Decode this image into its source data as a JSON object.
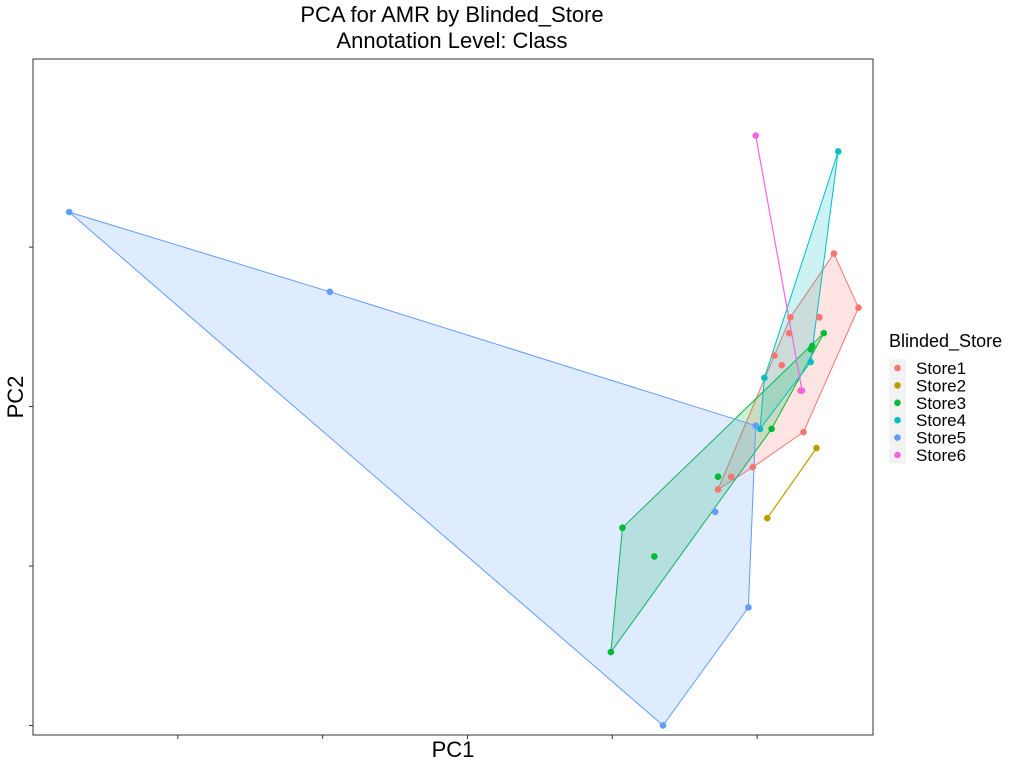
{
  "chart_data": {
    "type": "scatter",
    "title": "PCA for AMR by Blinded_Store",
    "subtitle": "Annotation Level: Class",
    "xlabel": "PC1",
    "ylabel": "PC2",
    "xlim": [
      -50,
      8
    ],
    "ylim": [
      -1.03,
      1.09
    ],
    "tick_labels_shown": false,
    "grid": false,
    "legend": {
      "title": "Blinded_Store",
      "position": "right"
    },
    "series": [
      {
        "name": "Store1",
        "color": "#F8766D",
        "hull": true,
        "points": [
          [
            5.3,
            0.48
          ],
          [
            7.0,
            0.31
          ],
          [
            3.2,
            -0.08
          ],
          [
            1.2,
            0.16
          ],
          [
            -1.8,
            -0.22
          ],
          [
            -2.7,
            -0.26
          ],
          [
            4.3,
            0.28
          ],
          [
            3.0,
            0.05
          ],
          [
            1.7,
            0.13
          ],
          [
            2.2,
            0.23
          ],
          [
            2.3,
            0.28
          ],
          [
            -0.3,
            -0.19
          ]
        ]
      },
      {
        "name": "Store2",
        "color": "#B79F00",
        "hull": false,
        "points": [
          [
            4.1,
            -0.13
          ],
          [
            0.7,
            -0.35
          ]
        ]
      },
      {
        "name": "Store3",
        "color": "#00BA38",
        "hull": true,
        "points": [
          [
            4.6,
            0.23
          ],
          [
            -9.3,
            -0.38
          ],
          [
            -10.1,
            -0.77
          ],
          [
            -7.1,
            -0.47
          ],
          [
            -2.7,
            -0.22
          ],
          [
            1.0,
            -0.07
          ],
          [
            3.8,
            0.19
          ],
          [
            3.7,
            0.18
          ]
        ]
      },
      {
        "name": "Store4",
        "color": "#00BFC4",
        "hull": true,
        "points": [
          [
            5.6,
            0.8
          ],
          [
            0.5,
            0.09
          ],
          [
            0.2,
            -0.07
          ],
          [
            3.7,
            0.14
          ]
        ]
      },
      {
        "name": "Store5",
        "color": "#619CFF",
        "hull": true,
        "points": [
          [
            -47.5,
            0.61
          ],
          [
            -29.5,
            0.36
          ],
          [
            -0.1,
            -0.06
          ],
          [
            -2.9,
            -0.33
          ],
          [
            -0.6,
            -0.63
          ],
          [
            -6.5,
            -1.0
          ]
        ]
      },
      {
        "name": "Store6",
        "color": "#F564E3",
        "hull": false,
        "points": [
          [
            -0.1,
            0.85
          ],
          [
            3.1,
            0.05
          ]
        ]
      }
    ]
  }
}
